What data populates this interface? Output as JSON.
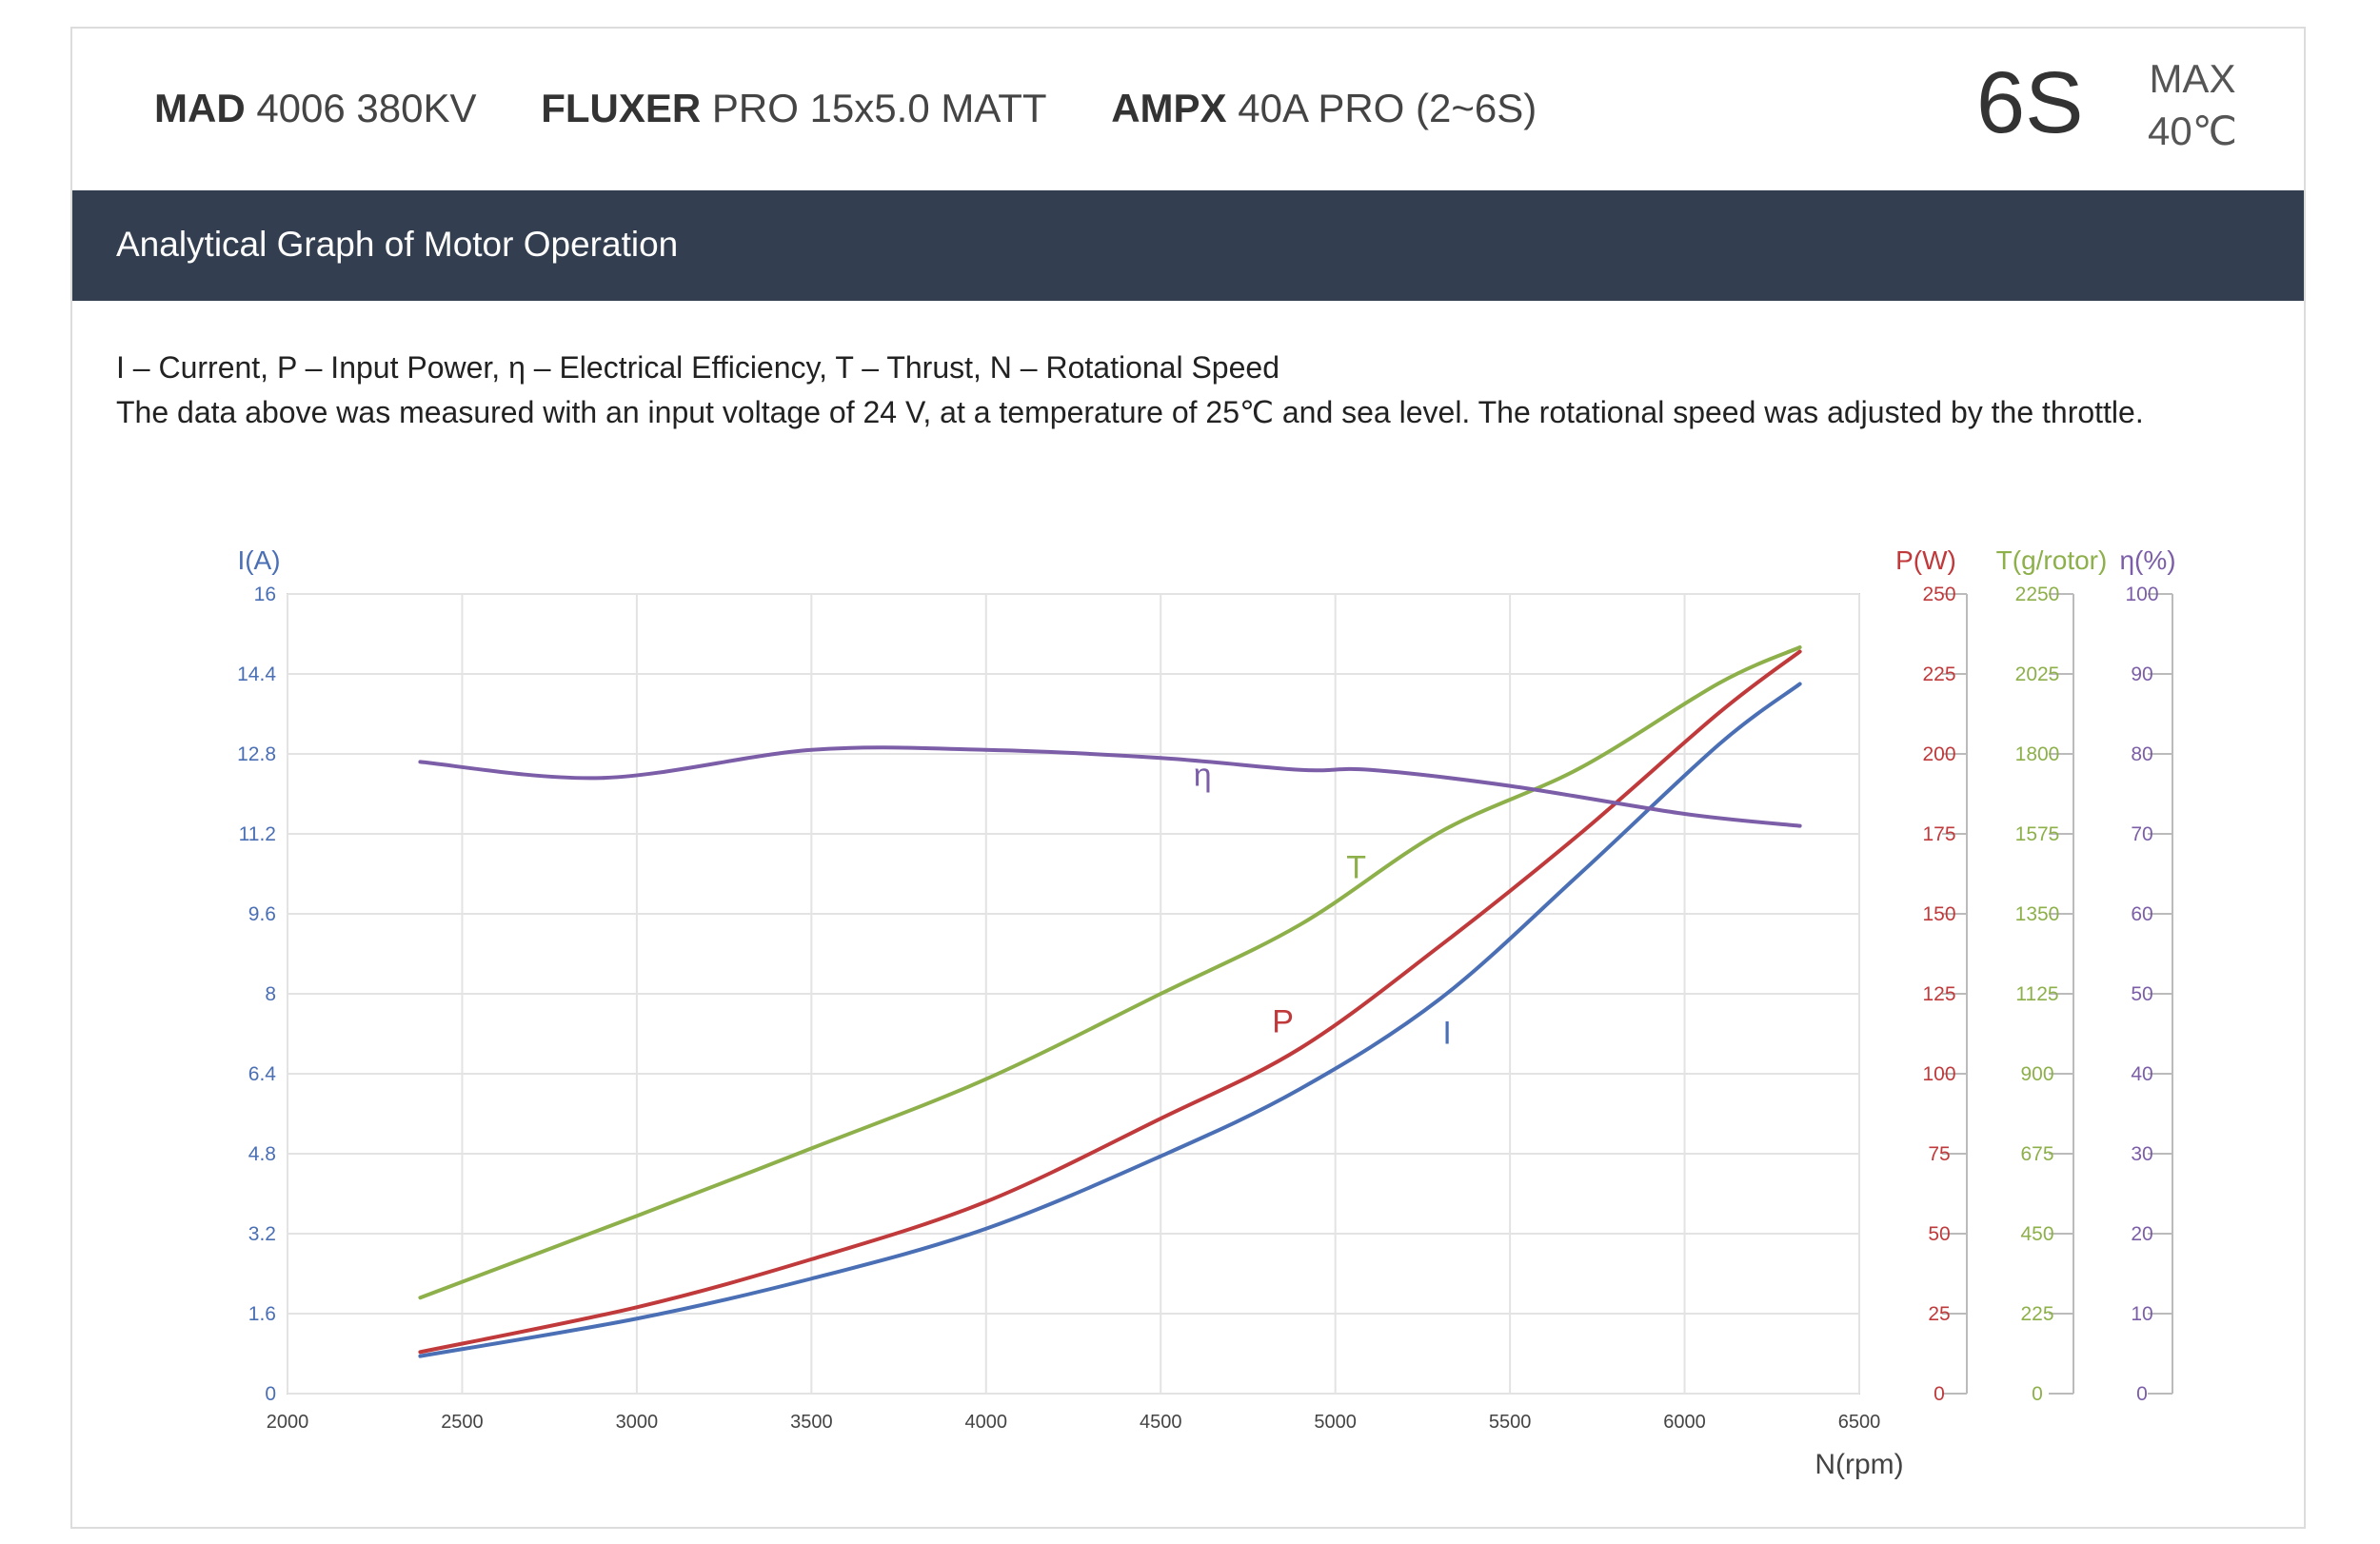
{
  "header": {
    "products": [
      {
        "brand": "MAD",
        "model": "4006 380KV"
      },
      {
        "brand": "FLUXER",
        "model": "PRO 15x5.0 MATT"
      },
      {
        "brand": "AMPX",
        "model": "40A PRO (2~6S)"
      }
    ],
    "cells": "6S",
    "max_label": "MAX",
    "max_temp": "40℃"
  },
  "banner": {
    "title": "Analytical Graph of Motor Operation"
  },
  "notes": {
    "line1": "I – Current, P – Input Power, η – Electrical Efficiency, T – Thrust,   N – Rotational Speed",
    "line2": "The data above was measured with an input voltage of 24 V, at a temperature of 25℃ and sea level. The rotational speed was adjusted by the throttle."
  },
  "colors": {
    "I": "#4a6fb5",
    "P": "#c0393b",
    "T": "#8db04a",
    "eta": "#7b5ea7",
    "grid": "#e3e3e3"
  },
  "chart_data": {
    "type": "line",
    "xlabel": "N(rpm)",
    "xlim": [
      2000,
      6500
    ],
    "x_ticks": [
      "2000",
      "2500",
      "3000",
      "3500",
      "4000",
      "4500",
      "5000",
      "5500",
      "6000",
      "6500"
    ],
    "axes": {
      "I": {
        "label": "I(A)",
        "range": [
          0,
          16
        ],
        "ticks": [
          "0",
          "1.6",
          "3.2",
          "4.8",
          "6.4",
          "8",
          "9.6",
          "11.2",
          "12.8",
          "14.4",
          "16"
        ]
      },
      "P": {
        "label": "P(W)",
        "range": [
          0,
          250
        ],
        "ticks": [
          "0",
          "25",
          "50",
          "75",
          "100",
          "125",
          "150",
          "175",
          "200",
          "225",
          "250"
        ]
      },
      "T": {
        "label": "T(g/rotor)",
        "range": [
          0,
          2250
        ],
        "ticks": [
          "0",
          "225",
          "450",
          "675",
          "900",
          "1125",
          "1350",
          "1575",
          "1800",
          "2025",
          "2250"
        ]
      },
      "eta": {
        "label": "η(%)",
        "range": [
          0,
          100
        ],
        "ticks": [
          "0",
          "10",
          "20",
          "30",
          "40",
          "50",
          "60",
          "70",
          "80",
          "90",
          "100"
        ]
      }
    },
    "grid": true,
    "series": [
      {
        "name": "I",
        "axis": "I",
        "x": [
          2380,
          3000,
          3500,
          4000,
          4500,
          4900,
          5300,
          5700,
          6100,
          6330
        ],
        "y": [
          0.75,
          1.5,
          2.3,
          3.3,
          4.75,
          6.1,
          7.9,
          10.4,
          13.0,
          14.2
        ]
      },
      {
        "name": "P",
        "axis": "P",
        "x": [
          2380,
          3000,
          3500,
          4000,
          4500,
          4900,
          5300,
          5700,
          6100,
          6330
        ],
        "y": [
          13,
          27,
          42,
          60,
          86,
          108,
          140,
          175,
          213,
          232
        ]
      },
      {
        "name": "T",
        "axis": "T",
        "x": [
          2380,
          3000,
          3500,
          4000,
          4500,
          4900,
          5300,
          5700,
          6100,
          6330
        ],
        "y": [
          270,
          500,
          690,
          885,
          1125,
          1320,
          1580,
          1760,
          2000,
          2100
        ]
      },
      {
        "name": "η",
        "axis": "eta",
        "x": [
          2380,
          2900,
          3500,
          4000,
          4500,
          4900,
          5100,
          5500,
          6000,
          6330
        ],
        "y": [
          79,
          77,
          80.5,
          80.5,
          79.5,
          78,
          78,
          76,
          72.5,
          71
        ]
      }
    ],
    "curve_labels": [
      {
        "text": "η",
        "series": "η",
        "x": 4620,
        "y_value": 76
      },
      {
        "text": "T",
        "series": "T",
        "x": 5060,
        "y_value": 1450
      },
      {
        "text": "P",
        "series": "P",
        "x": 4850,
        "y_value": 113
      },
      {
        "text": "I",
        "series": "I",
        "x": 5320,
        "y_value": 7
      }
    ]
  }
}
